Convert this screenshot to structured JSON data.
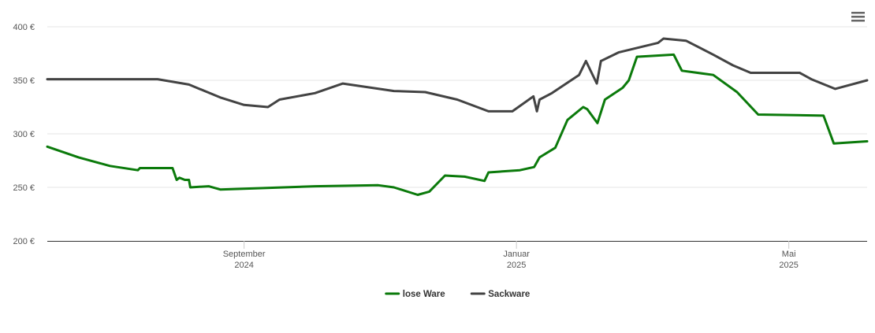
{
  "chart_data": {
    "type": "line",
    "grid": true,
    "legend": "bottom",
    "xlim": [
      5.11,
      17.15
    ],
    "xticks": [
      {
        "value": 8,
        "label": [
          "September",
          "2024"
        ]
      },
      {
        "value": 12,
        "label": [
          "Januar",
          "2025"
        ]
      },
      {
        "value": 16,
        "label": [
          "Mai",
          "2025"
        ]
      }
    ],
    "ylim": [
      200,
      400
    ],
    "yticks": [
      {
        "value": 200,
        "label": "200 €"
      },
      {
        "value": 250,
        "label": "250 €"
      },
      {
        "value": 300,
        "label": "300 €"
      },
      {
        "value": 350,
        "label": "350 €"
      },
      {
        "value": 400,
        "label": "400 €"
      }
    ],
    "series": [
      {
        "name": "lose Ware",
        "color": "#0b7a0b",
        "x": [
          5.11,
          5.57,
          6.03,
          6.44,
          6.47,
          6.95,
          7.01,
          7.05,
          7.13,
          7.19,
          7.21,
          7.48,
          7.65,
          8.12,
          9.04,
          9.97,
          10.2,
          10.55,
          10.72,
          10.95,
          11.24,
          11.53,
          11.59,
          12.05,
          12.26,
          12.34,
          12.57,
          12.75,
          12.98,
          13.04,
          13.19,
          13.3,
          13.56,
          13.65,
          13.77,
          14.31,
          14.43,
          14.89,
          15.24,
          15.55,
          16.51,
          16.66,
          17.15
        ],
        "values": [
          288,
          278,
          270,
          266,
          268,
          268,
          257,
          259,
          257,
          257,
          250,
          251,
          248,
          249,
          251,
          252,
          250,
          243,
          246,
          261,
          260,
          256,
          264,
          266,
          269,
          278,
          287,
          313,
          325,
          323,
          310,
          332,
          343,
          350,
          372,
          374,
          359,
          355,
          339,
          318,
          317,
          291,
          293
        ]
      },
      {
        "name": "Sackware",
        "color": "#434343",
        "x": [
          5.11,
          6.73,
          7.19,
          7.65,
          8.0,
          8.35,
          8.52,
          9.04,
          9.45,
          10.2,
          10.66,
          11.13,
          11.59,
          11.94,
          12.25,
          12.3,
          12.34,
          12.52,
          12.92,
          13.02,
          13.18,
          13.24,
          13.5,
          14.08,
          14.16,
          14.49,
          14.89,
          15.18,
          15.44,
          16.16,
          16.33,
          16.68,
          17.15
        ],
        "values": [
          351,
          351,
          346,
          334,
          327,
          325,
          332,
          338,
          347,
          340,
          339,
          332,
          321,
          321,
          335,
          321,
          332,
          338,
          355,
          368,
          347,
          368,
          376,
          385,
          389,
          387,
          374,
          364,
          357,
          357,
          351,
          342,
          350
        ]
      }
    ]
  }
}
